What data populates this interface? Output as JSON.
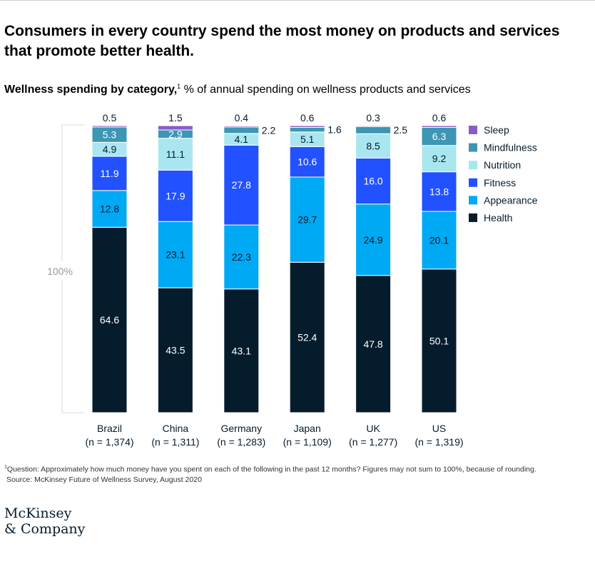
{
  "header": {
    "title": "Consumers in every country spend the most money on products and services that promote better health.",
    "subtitle_bold": "Wellness spending by category,",
    "subtitle_sup": "1",
    "subtitle_rest": " % of annual spending on wellness products and services"
  },
  "chart_data": {
    "type": "bar",
    "stacked": true,
    "categories": [
      "Brazil",
      "China",
      "Germany",
      "Japan",
      "UK",
      "US"
    ],
    "category_sublabels": [
      "(n = 1,374)",
      "(n = 1,311)",
      "(n = 1,283)",
      "(n = 1,109)",
      "(n = 1,277)",
      "(n = 1,319)"
    ],
    "axis_label": "100%",
    "series": [
      {
        "name": "Health",
        "color": "#051c2c",
        "label_color": "#ffffff",
        "values": [
          64.6,
          43.5,
          43.1,
          52.4,
          47.8,
          50.1
        ]
      },
      {
        "name": "Appearance",
        "color": "#00a9f4",
        "label_color": "#051c2c",
        "values": [
          12.8,
          23.1,
          22.3,
          29.7,
          24.9,
          20.1
        ]
      },
      {
        "name": "Fitness",
        "color": "#2251ff",
        "label_color": "#ffffff",
        "values": [
          11.9,
          17.9,
          27.8,
          10.6,
          16.0,
          13.8
        ]
      },
      {
        "name": "Nutrition",
        "color": "#aae6f0",
        "label_color": "#051c2c",
        "values": [
          4.9,
          11.1,
          4.1,
          5.1,
          8.5,
          9.2
        ]
      },
      {
        "name": "Mindfulness",
        "color": "#3c96b4",
        "label_color": "#ffffff",
        "values": [
          5.3,
          2.9,
          2.2,
          1.6,
          2.5,
          6.3
        ]
      },
      {
        "name": "Sleep",
        "color": "#8c5ac8",
        "label_color": "#051c2c",
        "values": [
          0.5,
          1.5,
          0.4,
          0.6,
          0.3,
          0.6
        ]
      }
    ],
    "value_labels": [
      [
        "64.6",
        "43.5",
        "43.1",
        "52.4",
        "47.8",
        "50.1"
      ],
      [
        "12.8",
        "23.1",
        "22.3",
        "29.7",
        "24.9",
        "20.1"
      ],
      [
        "11.9",
        "17.9",
        "27.8",
        "10.6",
        "16.0",
        "13.8"
      ],
      [
        "4.9",
        "11.1",
        "4.1",
        "5.1",
        "8.5",
        "9.2"
      ],
      [
        "5.3",
        "2.9",
        "2.2",
        "1.6",
        "2.5",
        "6.3"
      ],
      [
        "0.5",
        "1.5",
        "0.4",
        "0.6",
        "0.3",
        "0.6"
      ]
    ],
    "legend_order": [
      "Sleep",
      "Mindfulness",
      "Nutrition",
      "Fitness",
      "Appearance",
      "Health"
    ],
    "legend_position": "right",
    "outside_labels": {
      "Sleep": "top",
      "Mindfulness_outside_for": [
        "Germany",
        "Japan",
        "UK"
      ]
    }
  },
  "footnote": {
    "sup": "1",
    "line1": "Question: Approximately how much money have you spent on each of the following in the past 12 months? Figures may not sum to 100%, because of rounding.",
    "line2": "Source: McKinsey Future of Wellness Survey, August 2020"
  },
  "logo": {
    "line1": "McKinsey",
    "line2": "& Company"
  }
}
